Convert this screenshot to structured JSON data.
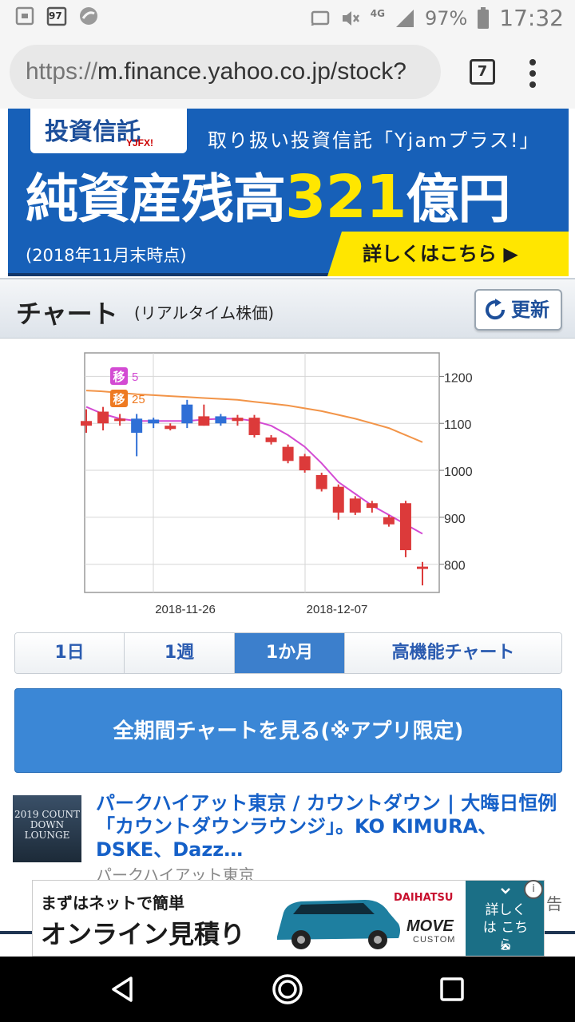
{
  "status_bar": {
    "notif_badge": "97",
    "network": "4G",
    "battery": "97%",
    "time": "17:32"
  },
  "browser": {
    "url_scheme": "https://",
    "url_host": "m.finance.yahoo.co.jp/stock?",
    "tab_count": "7"
  },
  "banner": {
    "logo": "投資信託",
    "logo_sub": "YJFX!",
    "top_text": "取り扱い投資信託「Yjamプラス!」",
    "main_prefix": "純資産残高",
    "main_accent": "321",
    "main_suffix": "億円",
    "date_note": "(2018年11月末時点)",
    "cta": "詳しくはこちら ▶"
  },
  "section": {
    "title": "チャート",
    "subtitle": "(リアルタイム株価)",
    "refresh": "更新"
  },
  "chart_data": {
    "type": "candlestick",
    "x_tick_labels": [
      "2018-11-26",
      "2018-12-07"
    ],
    "y_ticks": [
      1200,
      1100,
      1000,
      900,
      800
    ],
    "ylim": [
      740,
      1250
    ],
    "legend": [
      {
        "badge": "移",
        "label": "5",
        "color": "#d34bd3"
      },
      {
        "badge": "移",
        "label": "25",
        "color": "#ee7a22"
      }
    ],
    "colors": {
      "up": "#2f6fd6",
      "down": "#dc3a3a",
      "ma5": "#d34bd3",
      "ma25": "#f29448",
      "grid": "#d6d6d6"
    },
    "candles": [
      {
        "o": 1105,
        "h": 1130,
        "l": 1080,
        "c": 1095
      },
      {
        "o": 1125,
        "h": 1135,
        "l": 1085,
        "c": 1100
      },
      {
        "o": 1110,
        "h": 1120,
        "l": 1095,
        "c": 1105
      },
      {
        "o": 1080,
        "h": 1120,
        "l": 1030,
        "c": 1110
      },
      {
        "o": 1100,
        "h": 1112,
        "l": 1090,
        "c": 1108
      },
      {
        "o": 1095,
        "h": 1100,
        "l": 1085,
        "c": 1088
      },
      {
        "o": 1100,
        "h": 1150,
        "l": 1090,
        "c": 1140
      },
      {
        "o": 1115,
        "h": 1140,
        "l": 1095,
        "c": 1095
      },
      {
        "o": 1100,
        "h": 1120,
        "l": 1095,
        "c": 1115
      },
      {
        "o": 1112,
        "h": 1118,
        "l": 1095,
        "c": 1105
      },
      {
        "o": 1112,
        "h": 1118,
        "l": 1070,
        "c": 1075
      },
      {
        "o": 1070,
        "h": 1075,
        "l": 1055,
        "c": 1060
      },
      {
        "o": 1050,
        "h": 1055,
        "l": 1015,
        "c": 1020
      },
      {
        "o": 1030,
        "h": 1035,
        "l": 995,
        "c": 1000
      },
      {
        "o": 990,
        "h": 995,
        "l": 955,
        "c": 960
      },
      {
        "o": 965,
        "h": 970,
        "l": 895,
        "c": 910
      },
      {
        "o": 940,
        "h": 945,
        "l": 905,
        "c": 910
      },
      {
        "o": 930,
        "h": 935,
        "l": 910,
        "c": 920
      },
      {
        "o": 900,
        "h": 905,
        "l": 880,
        "c": 885
      },
      {
        "o": 930,
        "h": 935,
        "l": 815,
        "c": 830
      },
      {
        "o": 795,
        "h": 805,
        "l": 755,
        "c": 790
      }
    ],
    "ma5": [
      1135,
      1120,
      1110,
      1105,
      1105,
      1105,
      1105,
      1108,
      1110,
      1110,
      1105,
      1095,
      1075,
      1050,
      1015,
      975,
      950,
      925,
      905,
      885,
      865
    ],
    "ma25": [
      1170,
      1168,
      1165,
      1162,
      1160,
      1158,
      1156,
      1154,
      1152,
      1150,
      1146,
      1142,
      1138,
      1132,
      1126,
      1118,
      1110,
      1100,
      1090,
      1075,
      1060
    ]
  },
  "period_tabs": [
    {
      "label": "1日",
      "active": false
    },
    {
      "label": "1週",
      "active": false
    },
    {
      "label": "1か月",
      "active": true
    },
    {
      "label": "高機能チャート",
      "active": false
    }
  ],
  "app_button": "全期間チャートを見る(※アプリ限定)",
  "news": {
    "thumb_text": "2019 COUNT DOWN LOUNGE",
    "title": "パークハイアット東京 / カウントダウン | 大晦日恒例「カウントダウンラウンジ」。KO KIMURA、DSKE、Dazz…",
    "source": "パークハイアット東京"
  },
  "ad": {
    "line1": "まずはネットで簡単",
    "line2": "オンライン見積り",
    "brand": "DAIHATSU",
    "model": "MOVE",
    "model_sub": "CUSTOM",
    "cta": "詳しくは こちら",
    "info": "i",
    "label": "告"
  }
}
